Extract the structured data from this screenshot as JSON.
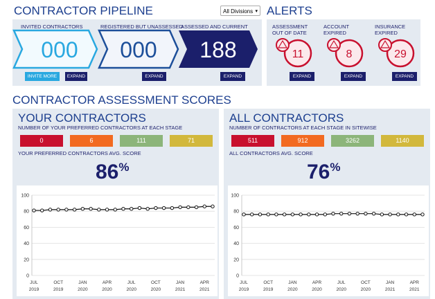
{
  "header": {
    "title": "CONTRACTOR PIPELINE",
    "division_select": "All Divisions"
  },
  "pipeline": [
    {
      "label": "INVITED CONTRACTORS",
      "count": "000",
      "buttons": [
        "INVITE MORE",
        "EXPAND"
      ]
    },
    {
      "label": "REGISTERED BUT UNASSESSED",
      "count": "000",
      "buttons": [
        "EXPAND"
      ]
    },
    {
      "label": "ASSESSED AND CURRENT",
      "count": 188,
      "buttons": [
        "EXPAND"
      ]
    }
  ],
  "alerts": {
    "title": "ALERTS",
    "items": [
      {
        "label": "ASSESSMENT OUT OF DATE",
        "count": 11,
        "button": "EXPAND"
      },
      {
        "label": "ACCOUNT EXPIRED",
        "count": 8,
        "button": "EXPAND"
      },
      {
        "label": "INSURANCE EXPIRED",
        "count": 29,
        "button": "EXPAND"
      }
    ]
  },
  "scores": {
    "title": "CONTRACTOR ASSESSMENT SCORES",
    "panels": [
      {
        "title": "YOUR CONTRACTORS",
        "stages_label": "NUMBER OF YOUR PREFERRED CONTRACTORS AT EACH STAGE",
        "stages": [
          {
            "value": 0,
            "color": "#c8102e"
          },
          {
            "value": 6,
            "color": "#f26a21"
          },
          {
            "value": 111,
            "color": "#8cb57a"
          },
          {
            "value": 71,
            "color": "#d2b83c"
          }
        ],
        "avg_label": "YOUR PREFERRED CONTRACTORS AVG. SCORE",
        "avg_score": 86,
        "avg_unit": "%"
      },
      {
        "title": "ALL CONTRACTORS",
        "stages_label": "NUMBER OF CONTRACTORS AT EACH STAGE IN SITEWISE",
        "stages": [
          {
            "value": 511,
            "color": "#c8102e"
          },
          {
            "value": 912,
            "color": "#f26a21"
          },
          {
            "value": 3262,
            "color": "#8cb57a"
          },
          {
            "value": 1140,
            "color": "#d2b83c"
          }
        ],
        "avg_label": "ALL CONTRACTORS AVG. SCORE",
        "avg_score": 76,
        "avg_unit": "%"
      }
    ]
  },
  "chart_data": [
    {
      "type": "line",
      "color": "#111111",
      "grid": true,
      "ylim": [
        0,
        100
      ],
      "yticks": [
        0,
        20,
        40,
        60,
        80,
        100
      ],
      "categories": [
        "JUL 2019",
        null,
        null,
        "OCT 2019",
        null,
        null,
        "JAN 2020",
        null,
        null,
        "APR 2020",
        null,
        null,
        "JUL 2020",
        null,
        null,
        "OCT 2020",
        null,
        null,
        "JAN 2021",
        null,
        null,
        "APR 2021",
        null
      ],
      "values": [
        81,
        81,
        82,
        82,
        82,
        82,
        83,
        83,
        82,
        82,
        82,
        83,
        83,
        84,
        83,
        84,
        84,
        84,
        85,
        85,
        85,
        86,
        86
      ]
    },
    {
      "type": "line",
      "color": "#111111",
      "grid": true,
      "ylim": [
        0,
        100
      ],
      "yticks": [
        0,
        20,
        40,
        60,
        80,
        100
      ],
      "categories": [
        "JUL 2019",
        null,
        null,
        "OCT 2019",
        null,
        null,
        "JAN 2020",
        null,
        null,
        "APR 2020",
        null,
        null,
        "JUL 2020",
        null,
        null,
        "OCT 2020",
        null,
        null,
        "JAN 2021",
        null,
        null,
        "APR 2021",
        null
      ],
      "values": [
        76,
        76,
        76,
        76,
        76,
        76,
        76,
        76,
        76,
        76,
        76,
        77,
        77,
        77,
        77,
        77,
        77,
        76,
        76,
        76,
        76,
        76,
        76
      ]
    }
  ]
}
